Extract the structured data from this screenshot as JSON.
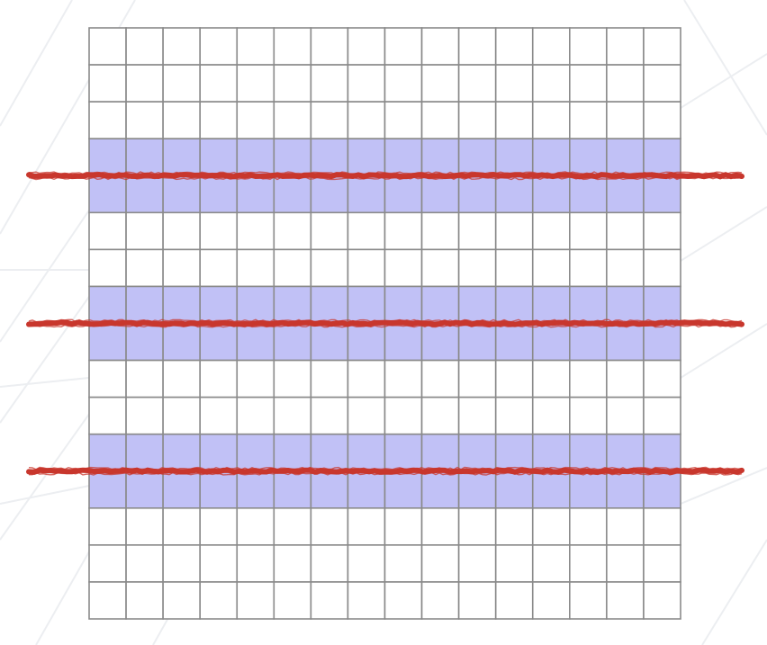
{
  "grid": {
    "rows": 16,
    "cols": 16,
    "highlighted_rows": [
      3,
      4,
      7,
      8,
      11,
      12
    ]
  },
  "red_lines": {
    "count": 3,
    "between_rows": [
      [
        3,
        4
      ],
      [
        7,
        8
      ],
      [
        11,
        12
      ]
    ]
  },
  "colors": {
    "background": "#ffffff",
    "cell_fill": "#ffffff",
    "highlight_fill": "#c1c1f6",
    "grid_stroke": "#8a8a8a",
    "red_line": "#c8372d",
    "background_pattern": "#eceef1"
  }
}
